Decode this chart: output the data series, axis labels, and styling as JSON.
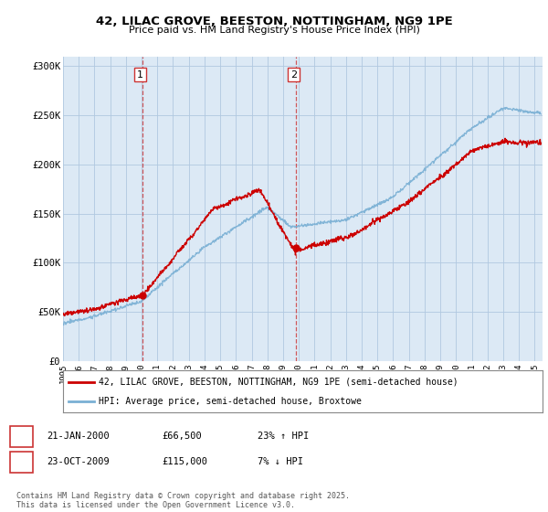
{
  "title": "42, LILAC GROVE, BEESTON, NOTTINGHAM, NG9 1PE",
  "subtitle": "Price paid vs. HM Land Registry's House Price Index (HPI)",
  "ylim": [
    0,
    310000
  ],
  "xlim_start": 1995.0,
  "xlim_end": 2025.5,
  "sale1_date": 2000.06,
  "sale1_price": 66500,
  "sale2_date": 2009.81,
  "sale2_price": 115000,
  "legend_property": "42, LILAC GROVE, BEESTON, NOTTINGHAM, NG9 1PE (semi-detached house)",
  "legend_hpi": "HPI: Average price, semi-detached house, Broxtowe",
  "footer": "Contains HM Land Registry data © Crown copyright and database right 2025.\nThis data is licensed under the Open Government Licence v3.0.",
  "line_color_red": "#cc0000",
  "line_color_blue": "#7ab0d4",
  "vline_color": "#cc3333",
  "chart_bg": "#dce9f5",
  "background_color": "#ffffff",
  "grid_color": "#b0c8e0",
  "yticks": [
    0,
    50000,
    100000,
    150000,
    200000,
    250000,
    300000
  ],
  "ytick_labels": [
    "£0",
    "£50K",
    "£100K",
    "£150K",
    "£200K",
    "£250K",
    "£300K"
  ],
  "xticks": [
    1995,
    1996,
    1997,
    1998,
    1999,
    2000,
    2001,
    2002,
    2003,
    2004,
    2005,
    2006,
    2007,
    2008,
    2009,
    2010,
    2011,
    2012,
    2013,
    2014,
    2015,
    2016,
    2017,
    2018,
    2019,
    2020,
    2021,
    2022,
    2023,
    2024,
    2025
  ],
  "ann1_date": "21-JAN-2000",
  "ann1_price": "£66,500",
  "ann1_hpi": "23% ↑ HPI",
  "ann2_date": "23-OCT-2009",
  "ann2_price": "£115,000",
  "ann2_hpi": "7% ↓ HPI"
}
